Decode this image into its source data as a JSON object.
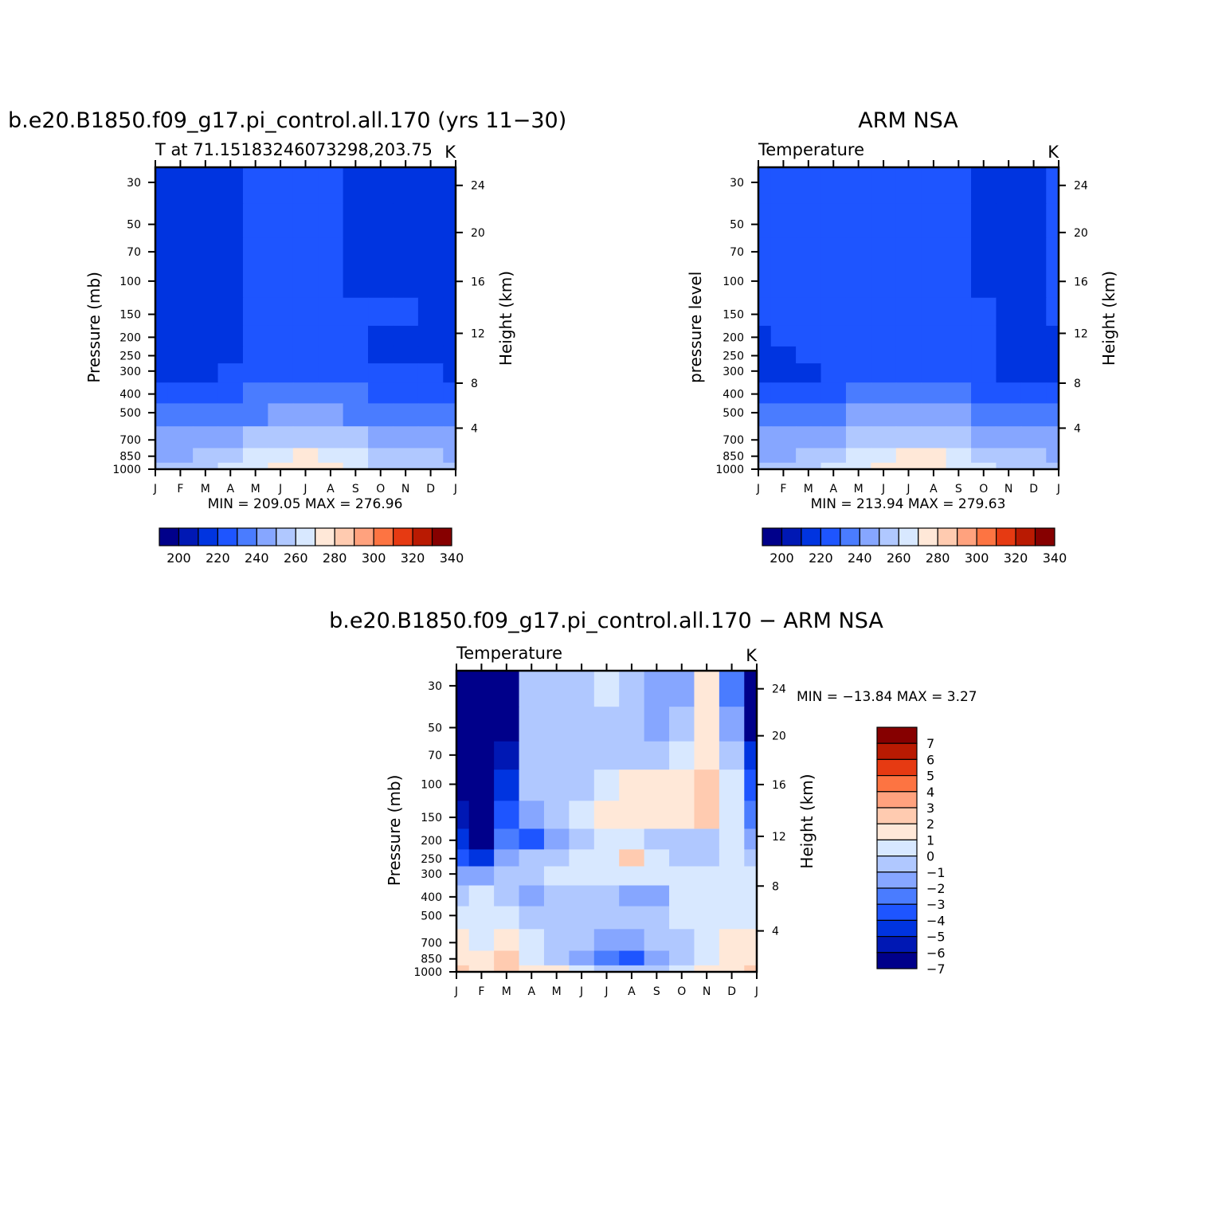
{
  "colors": {
    "abs_palette": [
      "#00008a",
      "#0018b4",
      "#0034e0",
      "#1e55ff",
      "#4a7cff",
      "#86a6ff",
      "#b0c8ff",
      "#d8e8ff",
      "#ffe8d8",
      "#ffcbb0",
      "#ffa27e",
      "#fd7442",
      "#e63a12",
      "#b91a02",
      "#860000"
    ],
    "diff_palette": [
      "#00008a",
      "#0018b4",
      "#0034e0",
      "#1e55ff",
      "#4a7cff",
      "#86a6ff",
      "#b0c8ff",
      "#d8e8ff",
      "#ffe8d8",
      "#ffcbb0",
      "#ffa27e",
      "#fd7442",
      "#e63a12",
      "#b91a02",
      "#860000"
    ]
  },
  "chart_data": [
    {
      "type": "heatmap",
      "id": "model",
      "title": "b.e20.B1850.f09_g17.pi_control.all.170 (yrs 11−30)",
      "subtitle_left": "T at 71.15183246073298,203.75",
      "subtitle_right": "K",
      "ylabel": "Pressure (mb)",
      "ylabel_right": "Height (km)",
      "x_ticks": [
        "J",
        "F",
        "M",
        "A",
        "M",
        "J",
        "J",
        "A",
        "S",
        "O",
        "N",
        "D",
        "J"
      ],
      "y_ticks": [
        "30",
        "50",
        "70",
        "100",
        "150",
        "200",
        "250",
        "300",
        "400",
        "500",
        "700",
        "850",
        "1000"
      ],
      "y_ticks_right": [
        "24",
        "20",
        "16",
        "12",
        "8",
        "4"
      ],
      "stats": "MIN = 209.05 MAX = 276.96",
      "colorbar_labels": [
        "200",
        "220",
        "240",
        "260",
        "280",
        "300",
        "320",
        "340"
      ],
      "colorbar_orientation": "horizontal",
      "levels": [
        195,
        200,
        210,
        220,
        230,
        240,
        250,
        260,
        270,
        280,
        290,
        300,
        310,
        320,
        330,
        340
      ],
      "columns": [
        "J",
        "F",
        "M",
        "A",
        "M",
        "J",
        "J",
        "A",
        "S",
        "O",
        "N",
        "D",
        "J"
      ],
      "rows": [
        "30",
        "50",
        "70",
        "100",
        "150",
        "200",
        "250",
        "300",
        "400",
        "500",
        "700",
        "850",
        "1000"
      ],
      "values": [
        [
          213,
          212,
          214,
          219,
          221,
          222,
          223,
          222,
          219,
          216,
          215,
          215,
          213
        ],
        [
          214,
          213,
          214,
          219,
          221,
          222,
          223,
          222,
          219,
          217,
          216,
          215,
          214
        ],
        [
          214,
          214,
          215,
          219,
          221,
          222,
          223,
          222,
          219,
          218,
          217,
          216,
          214
        ],
        [
          215,
          215,
          216,
          219,
          221,
          222,
          223,
          222,
          219,
          219,
          218,
          217,
          215
        ],
        [
          216,
          216,
          217,
          219,
          222,
          223,
          223,
          223,
          221,
          220,
          220,
          218,
          216
        ],
        [
          217,
          216,
          216,
          217,
          221,
          222,
          222,
          222,
          221,
          219,
          217,
          217,
          217
        ],
        [
          217,
          217,
          217,
          218,
          220,
          222,
          222,
          222,
          220,
          219,
          218,
          218,
          217
        ],
        [
          219,
          219,
          219,
          220,
          222,
          223,
          224,
          224,
          222,
          221,
          220,
          220,
          219
        ],
        [
          226,
          226,
          226,
          228,
          230,
          231,
          232,
          231,
          230,
          228,
          227,
          226,
          226
        ],
        [
          233,
          233,
          233,
          236,
          239,
          241,
          242,
          241,
          239,
          237,
          235,
          234,
          233
        ],
        [
          242,
          242,
          244,
          248,
          252,
          255,
          257,
          256,
          253,
          248,
          245,
          243,
          242
        ],
        [
          249,
          249,
          252,
          256,
          262,
          267,
          270,
          268,
          263,
          256,
          252,
          250,
          249
        ],
        [
          252,
          252,
          255,
          260,
          267,
          274,
          277,
          274,
          267,
          259,
          255,
          253,
          252
        ]
      ]
    },
    {
      "type": "heatmap",
      "id": "obs",
      "title": "ARM NSA",
      "subtitle_left": "Temperature",
      "subtitle_right": "K",
      "ylabel": "pressure level",
      "ylabel_right": "Height (km)",
      "x_ticks": [
        "J",
        "F",
        "M",
        "A",
        "M",
        "J",
        "J",
        "A",
        "S",
        "O",
        "N",
        "D",
        "J"
      ],
      "y_ticks": [
        "30",
        "50",
        "70",
        "100",
        "150",
        "200",
        "250",
        "300",
        "400",
        "500",
        "700",
        "850",
        "1000"
      ],
      "y_ticks_right": [
        "24",
        "20",
        "16",
        "12",
        "8",
        "4"
      ],
      "stats": "MIN = 213.94 MAX = 279.63",
      "colorbar_labels": [
        "200",
        "220",
        "240",
        "260",
        "280",
        "300",
        "320",
        "340"
      ],
      "colorbar_orientation": "horizontal",
      "levels": [
        195,
        200,
        210,
        220,
        230,
        240,
        250,
        260,
        270,
        280,
        290,
        300,
        310,
        320,
        330,
        340
      ],
      "columns": [
        "J",
        "F",
        "M",
        "A",
        "M",
        "J",
        "J",
        "A",
        "S",
        "O",
        "N",
        "D",
        "J"
      ],
      "rows": [
        "30",
        "50",
        "70",
        "100",
        "150",
        "200",
        "250",
        "300",
        "400",
        "500",
        "700",
        "850",
        "1000"
      ],
      "values": [
        [
          221,
          221,
          222,
          223,
          224,
          225,
          228,
          225,
          221,
          219,
          218,
          218,
          221
        ],
        [
          221,
          221,
          222,
          223,
          224,
          225,
          226,
          225,
          222,
          219,
          218,
          218,
          221
        ],
        [
          221,
          221,
          222,
          223,
          224,
          225,
          226,
          225,
          222,
          219,
          218,
          218,
          221
        ],
        [
          221,
          221,
          222,
          223,
          224,
          225,
          226,
          225,
          223,
          219,
          218,
          218,
          221
        ],
        [
          220,
          221,
          222,
          223,
          224,
          225,
          226,
          225,
          223,
          221,
          218,
          218,
          220
        ],
        [
          219,
          221,
          222,
          223,
          224,
          225,
          226,
          225,
          223,
          221,
          219,
          218,
          219
        ],
        [
          218,
          218,
          220,
          222,
          223,
          224,
          225,
          224,
          222,
          220,
          218,
          218,
          218
        ],
        [
          218,
          217,
          218,
          220,
          222,
          223,
          224,
          224,
          222,
          221,
          219,
          218,
          218
        ],
        [
          224,
          225,
          226,
          228,
          230,
          232,
          233,
          232,
          230,
          228,
          226,
          225,
          224
        ],
        [
          232,
          233,
          234,
          237,
          240,
          242,
          243,
          242,
          240,
          238,
          235,
          233,
          232
        ],
        [
          240,
          241,
          243,
          248,
          253,
          257,
          259,
          258,
          254,
          249,
          245,
          242,
          240
        ],
        [
          248,
          249,
          251,
          256,
          263,
          269,
          272,
          270,
          264,
          257,
          253,
          250,
          248
        ],
        [
          251,
          252,
          255,
          261,
          269,
          276,
          279,
          276,
          269,
          261,
          256,
          253,
          251
        ]
      ]
    },
    {
      "type": "heatmap",
      "id": "diff",
      "title": "b.e20.B1850.f09_g17.pi_control.all.170 − ARM NSA",
      "subtitle_left": "Temperature",
      "subtitle_right": "K",
      "ylabel": "Pressure (mb)",
      "ylabel_right": "Height (km)",
      "x_ticks": [
        "J",
        "F",
        "M",
        "A",
        "M",
        "J",
        "J",
        "A",
        "S",
        "O",
        "N",
        "D",
        "J"
      ],
      "y_ticks": [
        "30",
        "50",
        "70",
        "100",
        "150",
        "200",
        "250",
        "300",
        "400",
        "500",
        "700",
        "850",
        "1000"
      ],
      "y_ticks_right": [
        "24",
        "20",
        "16",
        "12",
        "8",
        "4"
      ],
      "stats": "MIN = −13.84 MAX =    3.27",
      "colorbar_labels": [
        "7",
        "6",
        "5",
        "4",
        "3",
        "2",
        "1",
        "0",
        "−1",
        "−2",
        "−3",
        "−4",
        "−5",
        "−6",
        "−7"
      ],
      "colorbar_orientation": "vertical",
      "levels": [
        -8,
        -7,
        -6,
        -5,
        -4,
        -3,
        -2,
        -1,
        0,
        1,
        2,
        3,
        4,
        5,
        6,
        7,
        8
      ],
      "columns": [
        "J",
        "F",
        "M",
        "A",
        "M",
        "J",
        "J",
        "A",
        "S",
        "O",
        "N",
        "D",
        "J"
      ],
      "rows": [
        "30",
        "50",
        "70",
        "100",
        "150",
        "200",
        "250",
        "300",
        "400",
        "500",
        "700",
        "850",
        "1000"
      ],
      "values": [
        [
          -9,
          -10,
          -8,
          -2,
          -1.5,
          -1.2,
          -0.8,
          -2,
          -2.5,
          -2.5,
          0.5,
          -4,
          -9
        ],
        [
          -9,
          -10,
          -8,
          -2,
          -1.5,
          -1.5,
          -1.5,
          -2,
          -2.5,
          -1.5,
          0.5,
          -3,
          -8
        ],
        [
          -9,
          -10,
          -7,
          -2,
          -1.5,
          -1.8,
          -1.5,
          -1.5,
          -1.5,
          -1,
          0.5,
          -2,
          -6
        ],
        [
          -8,
          -10,
          -6,
          -2,
          -1.5,
          -2,
          -0.5,
          0.3,
          0.3,
          0.5,
          1,
          -1,
          -5
        ],
        [
          -7,
          -9,
          -5,
          -2.5,
          -1.5,
          -1,
          0.5,
          0.5,
          0.5,
          0.5,
          1.5,
          -0.5,
          -4
        ],
        [
          -6,
          -8,
          -4,
          -5,
          -3,
          -1.5,
          -0.5,
          -0.5,
          -2,
          -2,
          -1.5,
          -1,
          -3
        ],
        [
          -5,
          -6,
          -3,
          -2,
          -1.5,
          -1,
          -0.5,
          1.5,
          -1,
          -1.5,
          -1.5,
          -0.5,
          -2
        ],
        [
          -3,
          -3,
          -2,
          -2,
          -1,
          -0.8,
          -1,
          -0.5,
          -1,
          -1,
          -1,
          -0.5,
          -1
        ],
        [
          -1.5,
          -1,
          -1.5,
          -2.5,
          -1.5,
          -2,
          -2,
          -3,
          -2.5,
          -1,
          -0.5,
          -0.5,
          -1
        ],
        [
          -0.5,
          -1,
          -0.5,
          -2,
          -2,
          -1.5,
          -1.5,
          -2,
          -2,
          -1,
          -0.5,
          -0.5,
          -0.5
        ],
        [
          0.5,
          -1,
          0.5,
          -1,
          -1.5,
          -2,
          -2.5,
          -2.5,
          -2,
          -1.5,
          -0.5,
          0.5,
          0.5
        ],
        [
          0.5,
          0.5,
          1,
          -0.5,
          -2,
          -3,
          -4,
          -4.5,
          -2.5,
          -1.5,
          -0.5,
          0.5,
          0.5
        ],
        [
          1.5,
          0.5,
          1.5,
          0.5,
          0,
          -1,
          -2,
          -1.5,
          -1.5,
          -0.5,
          0.5,
          0.5,
          1
        ]
      ]
    }
  ]
}
